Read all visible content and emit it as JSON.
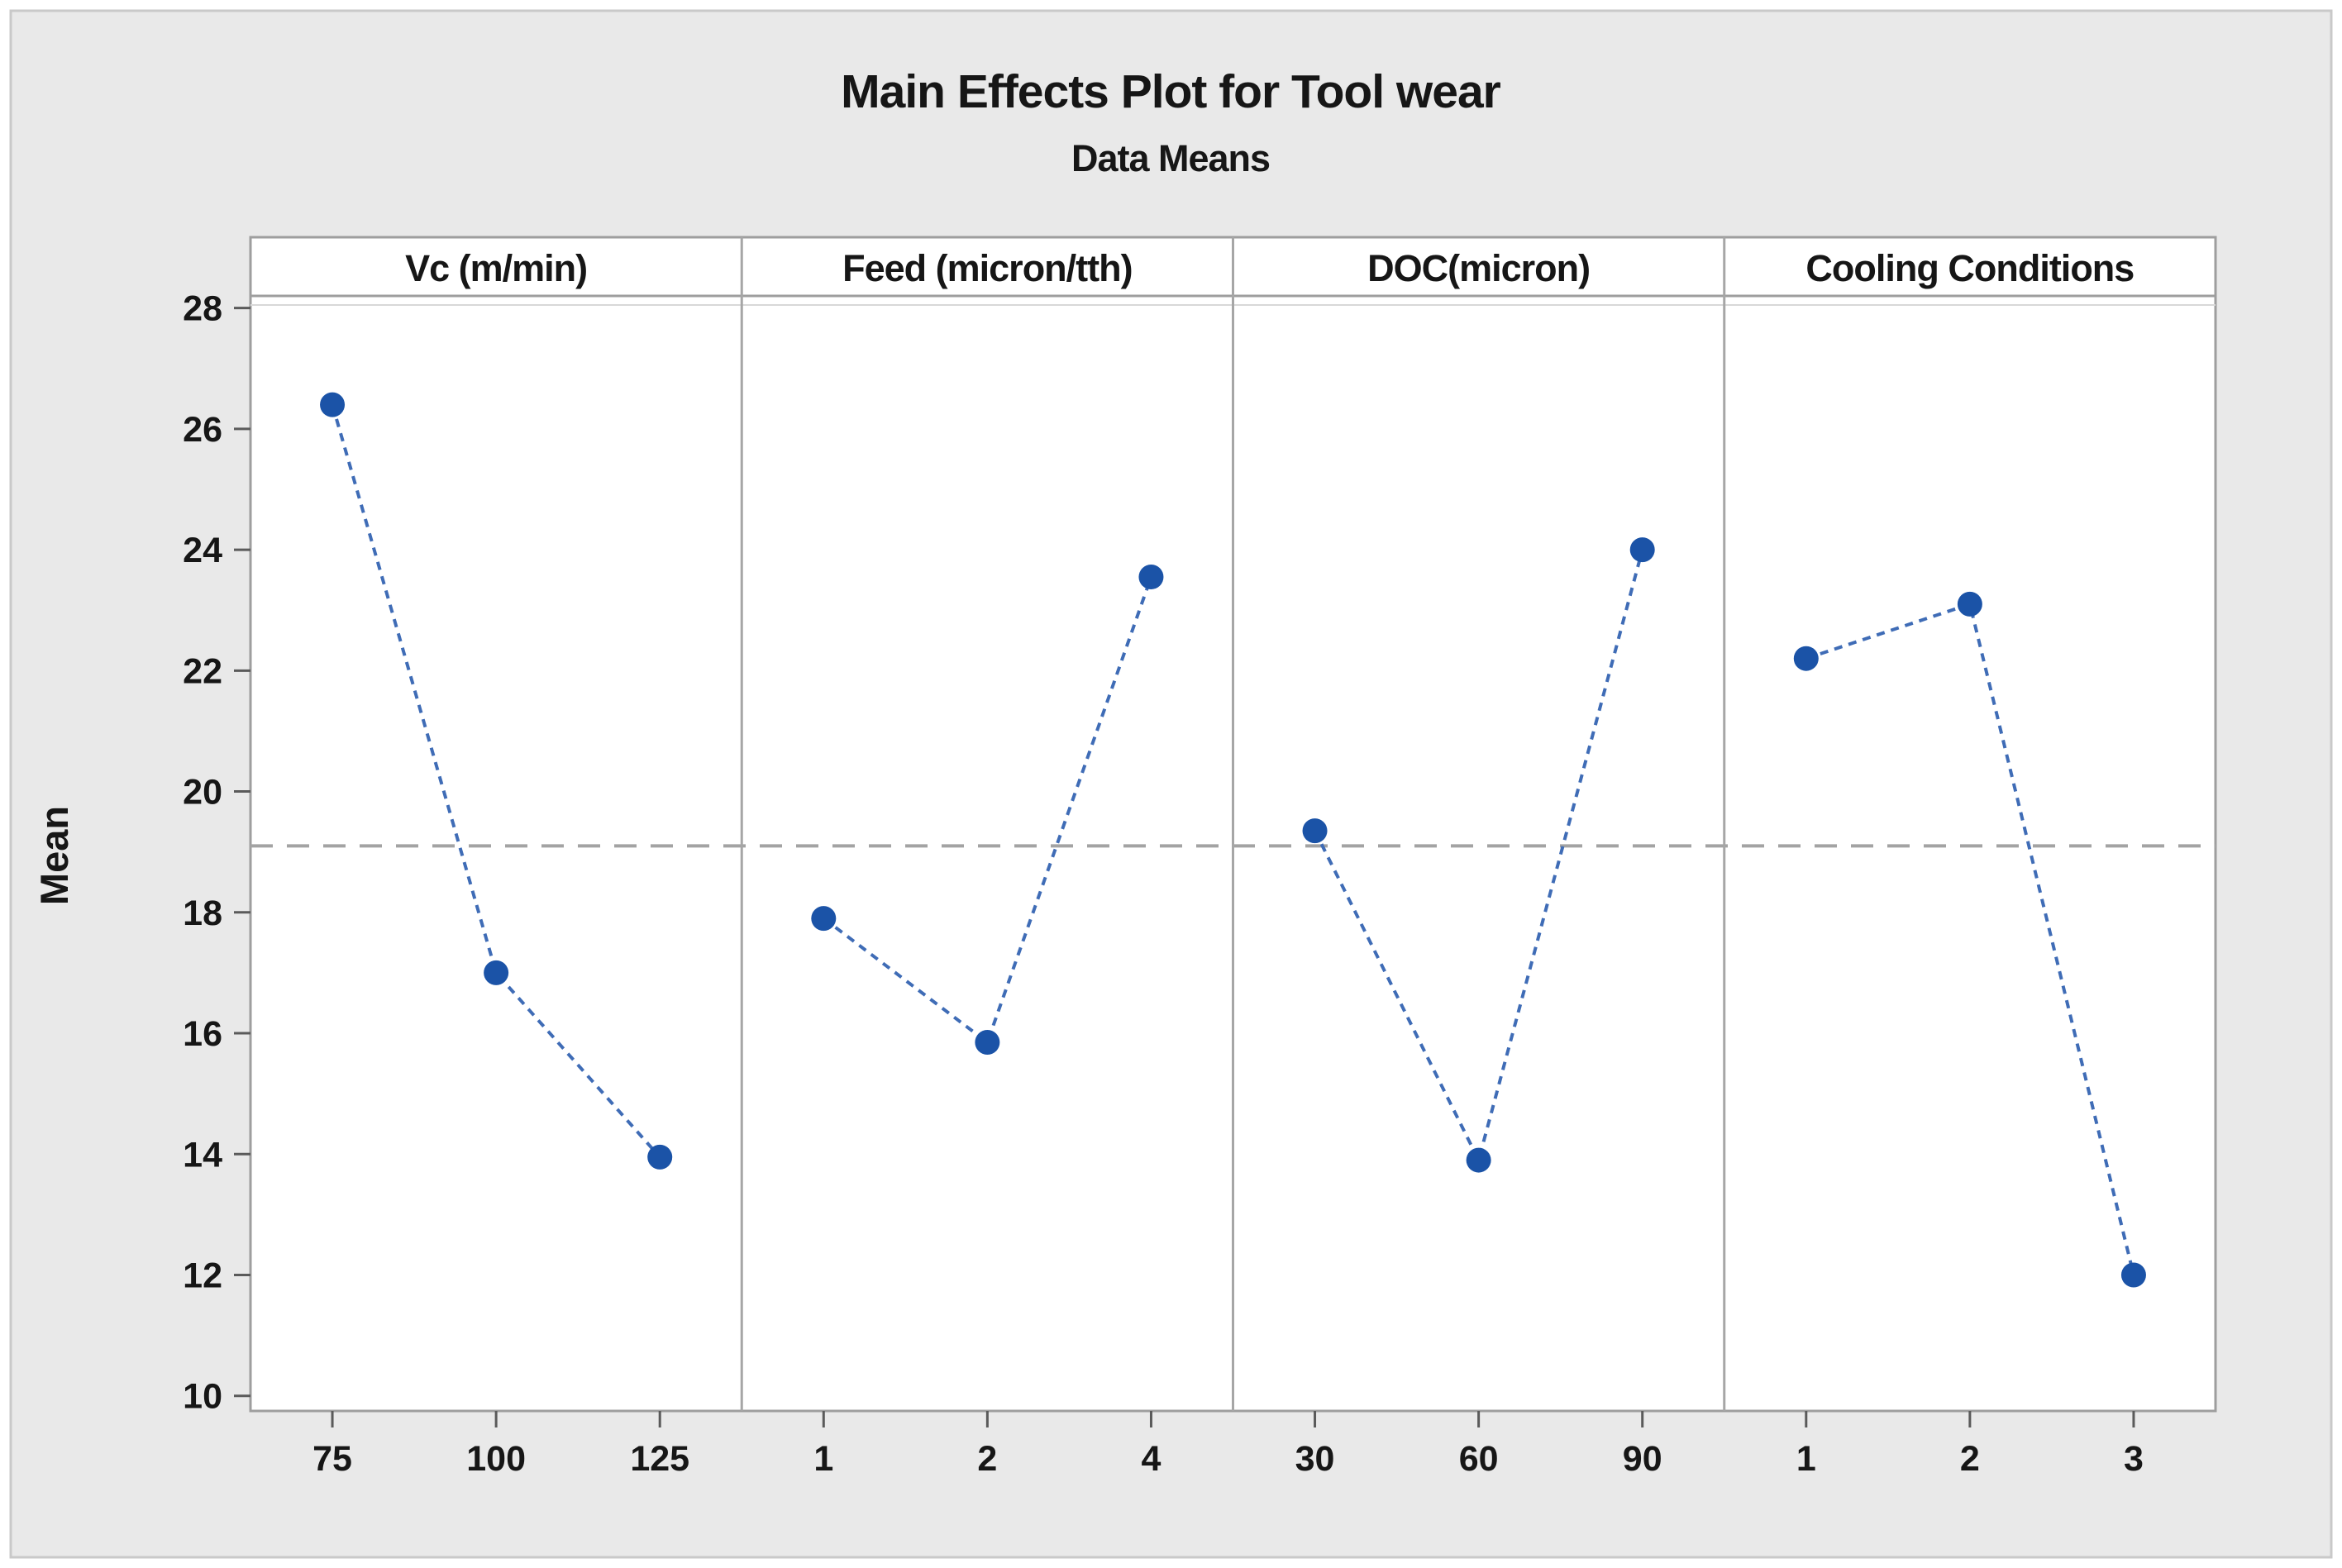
{
  "figure": {
    "title": "Main Effects Plot for Tool wear",
    "subtitle": "Data Means"
  },
  "chart_data": {
    "type": "line",
    "title": "Main Effects Plot for Tool wear",
    "subtitle": "Data Means",
    "ylabel": "Mean",
    "xlabel": "",
    "y_ticks": [
      10,
      12,
      14,
      16,
      18,
      20,
      22,
      24,
      26,
      28
    ],
    "ylim": [
      9.75,
      28.2
    ],
    "grand_mean": 19.1,
    "grid": "off",
    "legend": "none",
    "panels": [
      {
        "label": "Vc (m/min)",
        "categories": [
          "75",
          "100",
          "125"
        ],
        "values": [
          26.4,
          17.0,
          13.95
        ]
      },
      {
        "label": "Feed (micron/tth)",
        "categories": [
          "1",
          "2",
          "4"
        ],
        "values": [
          17.9,
          15.85,
          23.55
        ]
      },
      {
        "label": "DOC(micron)",
        "categories": [
          "30",
          "60",
          "90"
        ],
        "values": [
          19.35,
          13.9,
          24.0
        ]
      },
      {
        "label": "Cooling Conditions",
        "categories": [
          "1",
          "2",
          "3"
        ],
        "values": [
          22.2,
          23.1,
          12.0
        ]
      }
    ],
    "colors": {
      "marker": "#1b53a7",
      "series_line": "#3f6cb6",
      "mean_line": "#a3a3a3",
      "frame": "#9e9e9e",
      "divider": "#a6a6a6",
      "tick": "#5a5a5a",
      "text": "#161616",
      "canvas_bg": "#e9e9e9",
      "canvas_border": "#c9c9c9",
      "plot_bg": "#ffffff"
    }
  }
}
